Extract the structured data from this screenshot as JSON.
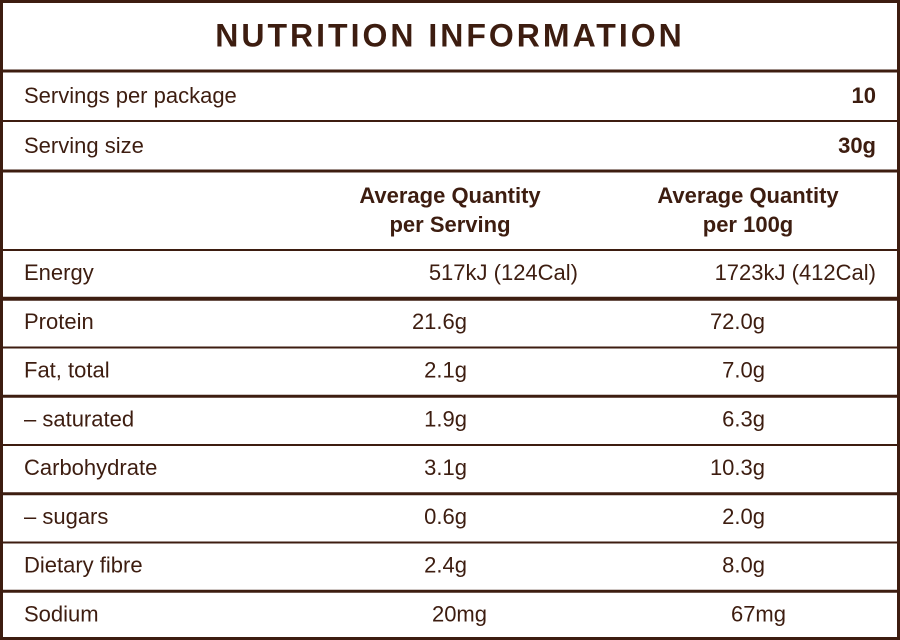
{
  "title": "NUTRITION INFORMATION",
  "servings_per_package": {
    "label": "Servings per package",
    "value": "10"
  },
  "serving_size": {
    "label": "Serving size",
    "value": "30g"
  },
  "header": {
    "per_serving": [
      "Average Quantity",
      "per Serving"
    ],
    "per_100g": [
      "Average Quantity",
      "per 100g"
    ]
  },
  "table": {
    "rows": [
      [
        "Energy",
        "517kJ (124Cal)",
        "1723kJ (412Cal)"
      ],
      [
        "Protein",
        "21.6g",
        "72.0g"
      ],
      [
        "Fat, total",
        "2.1g",
        "7.0g"
      ],
      [
        "– saturated",
        "1.9g",
        "6.3g"
      ],
      [
        "Carbohydrate",
        "3.1g",
        "10.3g"
      ],
      [
        "– sugars",
        "0.6g",
        "2.0g"
      ],
      [
        "Dietary fibre",
        "2.4g",
        "8.0g"
      ],
      [
        "Sodium",
        "20mg",
        "67mg"
      ]
    ]
  }
}
